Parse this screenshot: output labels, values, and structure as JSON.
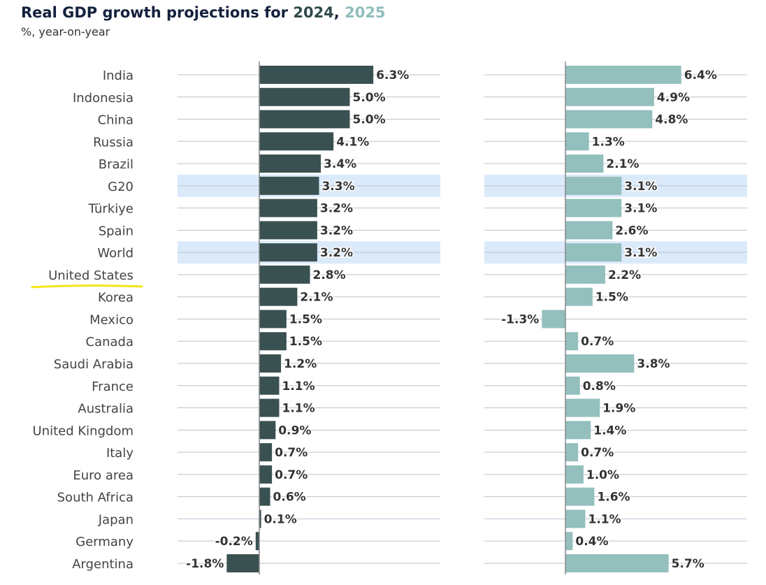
{
  "chart_data": [
    {
      "type": "bar",
      "orientation": "horizontal",
      "title": "Real GDP growth projections for 2024, 2025",
      "title_parts": {
        "prefix": "Real GDP growth projections for ",
        "year1": "2024",
        "sep": ", ",
        "year2": "2025"
      },
      "subtitle": "%, year-on-year",
      "categories": [
        "India",
        "Indonesia",
        "China",
        "Russia",
        "Brazil",
        "G20",
        "Türkiye",
        "Spain",
        "World",
        "United States",
        "Korea",
        "Mexico",
        "Canada",
        "Saudi Arabia",
        "France",
        "Australia",
        "United Kingdom",
        "Italy",
        "Euro area",
        "South Africa",
        "Japan",
        "Germany",
        "Argentina"
      ],
      "highlighted_categories": [
        "G20",
        "World"
      ],
      "underlined_category": "United States",
      "series": [
        {
          "year": "2024",
          "color": "#3a5151",
          "values": [
            6.3,
            5.0,
            5.0,
            4.1,
            3.4,
            3.3,
            3.2,
            3.2,
            3.2,
            2.8,
            2.1,
            1.5,
            1.5,
            1.2,
            1.1,
            1.1,
            0.9,
            0.7,
            0.7,
            0.6,
            0.1,
            -0.2,
            -1.8
          ]
        },
        {
          "year": "2025",
          "color": "#93bfbd",
          "values": [
            6.4,
            4.9,
            4.8,
            1.3,
            2.1,
            3.1,
            3.1,
            2.6,
            3.1,
            2.2,
            1.5,
            -1.3,
            0.7,
            3.8,
            0.8,
            1.9,
            1.4,
            0.7,
            1.0,
            1.6,
            1.1,
            0.4,
            5.7
          ]
        }
      ],
      "value_suffix": "%",
      "grid": true,
      "colors": {
        "highlight_band": "#dbeafb",
        "underline": "#f5e61a",
        "title": "#14213d"
      }
    }
  ]
}
